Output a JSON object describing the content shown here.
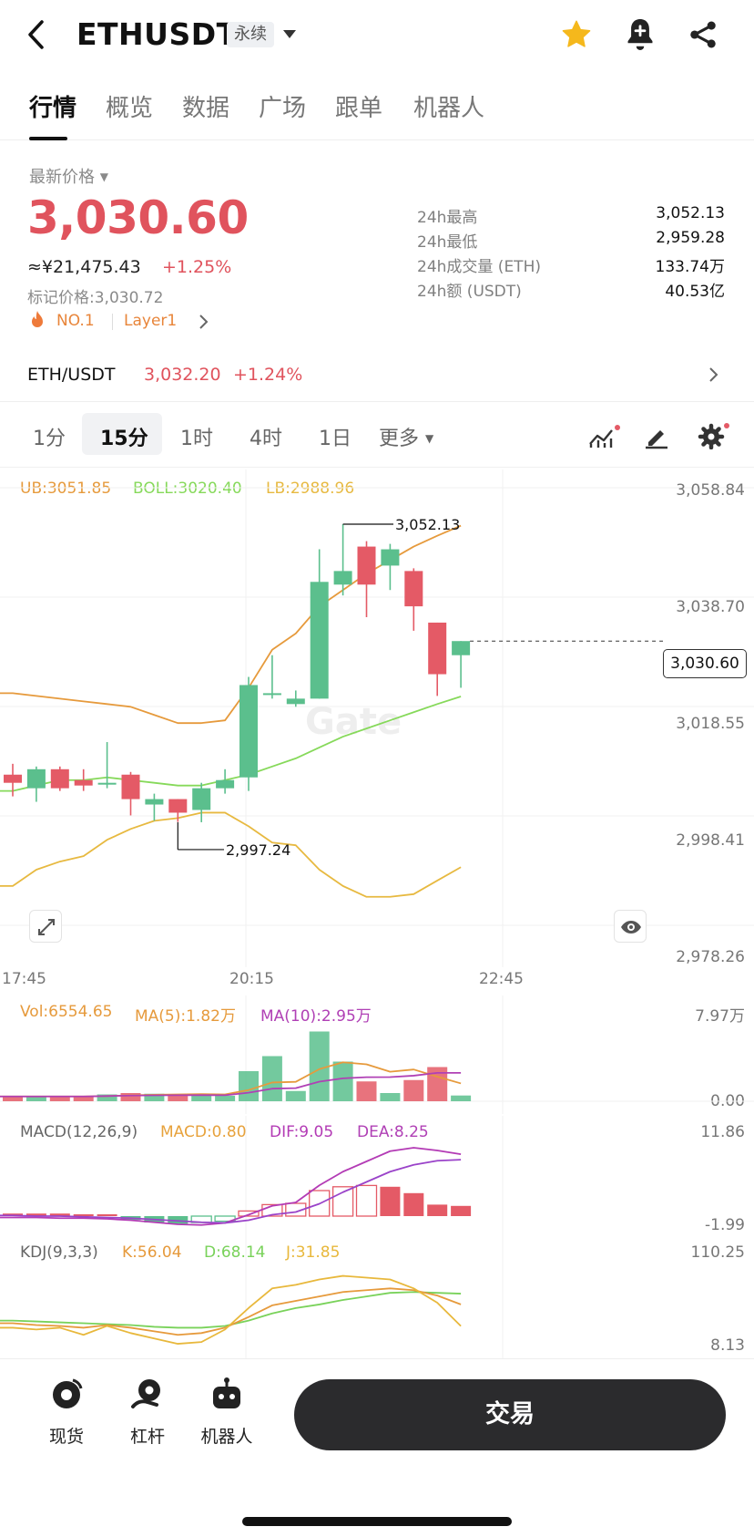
{
  "header": {
    "pair": "ETHUSDT",
    "contract_type": "永续",
    "favorited": true,
    "icons": [
      "back-icon",
      "dropdown-icon",
      "star-icon",
      "bell-plus-icon",
      "share-icon"
    ]
  },
  "tabs": [
    "行情",
    "概览",
    "数据",
    "广场",
    "跟单",
    "机器人"
  ],
  "price": {
    "label": "最新价格",
    "last": "3,030.60",
    "cny": "≈¥21,475.43",
    "change": "+1.25%",
    "mark_label": "标记价格:",
    "mark_value": "3,030.72",
    "tag_rank": "NO.1",
    "tag_sector": "Layer1"
  },
  "stats": [
    {
      "label": "24h最高",
      "value": "3,052.13"
    },
    {
      "label": "24h最低",
      "value": "2,959.28"
    },
    {
      "label": "24h成交量 (ETH)",
      "value": "133.74万"
    },
    {
      "label": "24h额 (USDT)",
      "value": "40.53亿"
    }
  ],
  "spot": {
    "pair": "ETH/USDT",
    "price": "3,032.20",
    "change": "+1.24%"
  },
  "intervals": [
    "1分",
    "15分",
    "1时",
    "4时",
    "1日",
    "更多"
  ],
  "active_interval": "15分",
  "boll": {
    "ub": "UB:3051.85",
    "mid": "BOLL:3020.40",
    "lb": "LB:2988.96"
  },
  "colors": {
    "up": "#5bbf8d",
    "down": "#e45a66",
    "ub": "#e69a3c",
    "mid": "#86d95a",
    "lb": "#e7b940",
    "macd": "#e7a23c",
    "dif": "#b33bb5",
    "dea": "#b040b5",
    "kdj_k": "#e69a3c",
    "kdj_d": "#79d25a",
    "kdj_j": "#e8b83c"
  },
  "chart_data": {
    "type": "candlestick",
    "x_ticks": [
      "17:45",
      "20:15",
      "22:45"
    ],
    "y_ticks": [
      "3,058.84",
      "3,038.70",
      "3,018.55",
      "2,998.41",
      "2,978.26"
    ],
    "ylim": [
      2978.26,
      3058.84
    ],
    "last_price_tag": "3,030.60",
    "high_marker": "3,052.13",
    "low_marker": "2,997.24",
    "candles": [
      {
        "o": 3006.0,
        "h": 3008.0,
        "l": 3002.0,
        "c": 3004.5
      },
      {
        "o": 3003.5,
        "h": 3007.5,
        "l": 3001.0,
        "c": 3007.0
      },
      {
        "o": 3007.0,
        "h": 3007.5,
        "l": 3003.0,
        "c": 3003.5
      },
      {
        "o": 3005.0,
        "h": 3007.0,
        "l": 3003.0,
        "c": 3004.0
      },
      {
        "o": 3004.5,
        "h": 3012.0,
        "l": 3003.5,
        "c": 3004.5
      },
      {
        "o": 3006.0,
        "h": 3006.5,
        "l": 2998.5,
        "c": 3001.5
      },
      {
        "o": 3000.5,
        "h": 3002.5,
        "l": 2997.5,
        "c": 3001.5
      },
      {
        "o": 3001.5,
        "h": 3001.5,
        "l": 2997.3,
        "c": 2999.0
      },
      {
        "o": 2999.5,
        "h": 3004.5,
        "l": 2997.24,
        "c": 3003.5
      },
      {
        "o": 3003.5,
        "h": 3007.0,
        "l": 3002.5,
        "c": 3005.0
      },
      {
        "o": 3005.5,
        "h": 3024.0,
        "l": 3003.0,
        "c": 3022.5
      },
      {
        "o": 3021.0,
        "h": 3028.0,
        "l": 3020.0,
        "c": 3021.0
      },
      {
        "o": 3019.0,
        "h": 3021.5,
        "l": 3018.5,
        "c": 3020.0
      },
      {
        "o": 3020.0,
        "h": 3047.5,
        "l": 3020.0,
        "c": 3041.5
      },
      {
        "o": 3041.0,
        "h": 3052.13,
        "l": 3039.0,
        "c": 3043.5
      },
      {
        "o": 3048.0,
        "h": 3049.0,
        "l": 3035.0,
        "c": 3041.0
      },
      {
        "o": 3044.5,
        "h": 3048.5,
        "l": 3040.0,
        "c": 3047.5
      },
      {
        "o": 3043.5,
        "h": 3044.0,
        "l": 3032.5,
        "c": 3037.0
      },
      {
        "o": 3034.0,
        "h": 3034.0,
        "l": 3020.5,
        "c": 3024.5
      },
      {
        "o": 3028.0,
        "h": 3030.6,
        "l": 3022.0,
        "c": 3030.6
      }
    ],
    "boll_ub": [
      3021,
      3020.5,
      3020,
      3019.5,
      3019,
      3018.5,
      3017,
      3015.5,
      3015.5,
      3016,
      3022,
      3029,
      3032,
      3037,
      3040,
      3043,
      3045.5,
      3048,
      3050,
      3051.85
    ],
    "boll_mid": [
      3003,
      3004,
      3005,
      3005,
      3005.5,
      3005,
      3004.5,
      3004,
      3004,
      3005,
      3006,
      3007.5,
      3009,
      3011,
      3013,
      3014.5,
      3016,
      3017.5,
      3019,
      3020.4
    ],
    "boll_lb": [
      2985.5,
      2988.5,
      2990,
      2991,
      2994,
      2996,
      2997.5,
      2998,
      2999,
      2999,
      2996.5,
      2993.5,
      2993,
      2988.5,
      2985.5,
      2983.5,
      2983.5,
      2984,
      2986.5,
      2988.96
    ],
    "volume": {
      "label": "Vol:6554.65",
      "ma5_label": "MA(5):1.82万",
      "ma10_label": "MA(10):2.95万",
      "y_ticks": [
        "7.97万",
        "0.00"
      ],
      "values": [
        0.35,
        0.35,
        0.35,
        0.35,
        0.5,
        0.6,
        0.55,
        0.5,
        0.45,
        0.4,
        2.2,
        3.3,
        0.75,
        5.1,
        2.9,
        1.45,
        0.6,
        1.55,
        2.5,
        0.42
      ]
    },
    "macd": {
      "label": "MACD(12,26,9)",
      "macd_label": "MACD:0.80",
      "dif_label": "DIF:9.05",
      "dea_label": "DEA:8.25",
      "y_ticks": [
        "11.86",
        "-1.99"
      ],
      "hist": [
        0.2,
        0.2,
        0.2,
        0.1,
        0,
        -0.3,
        -0.5,
        -0.6,
        -0.5,
        -0.4,
        0.4,
        0.9,
        1.0,
        2.0,
        2.3,
        2.4,
        2.3,
        1.8,
        0.9,
        0.8
      ],
      "dif": [
        -0.2,
        -0.2,
        -0.3,
        -0.3,
        -0.4,
        -0.6,
        -0.9,
        -1.2,
        -1.3,
        -1.0,
        0.2,
        1.5,
        2.0,
        4.5,
        6.5,
        8.0,
        9.5,
        10.0,
        9.6,
        9.05
      ],
      "dea": [
        0.1,
        0.0,
        0.0,
        -0.1,
        -0.2,
        -0.3,
        -0.5,
        -0.7,
        -0.9,
        -1.0,
        -0.6,
        0.2,
        0.6,
        1.8,
        3.5,
        5.0,
        6.5,
        7.5,
        8.1,
        8.25
      ]
    },
    "kdj": {
      "label": "KDJ(9,3,3)",
      "k_label": "K:56.04",
      "d_label": "D:68.14",
      "j_label": "J:31.85",
      "y_ticks": [
        "110.25",
        "8.13"
      ],
      "k": [
        35,
        33,
        32,
        30,
        33,
        30,
        26,
        22,
        24,
        30,
        42,
        55,
        60,
        65,
        70,
        72,
        74,
        72,
        66,
        56.04
      ],
      "d": [
        38,
        37,
        36,
        35,
        34,
        33,
        31,
        30,
        30,
        32,
        38,
        46,
        52,
        56,
        61,
        65,
        69,
        70,
        69,
        68.14
      ],
      "j": [
        30,
        28,
        30,
        22,
        32,
        24,
        18,
        12,
        14,
        28,
        52,
        74,
        78,
        84,
        88,
        86,
        84,
        74,
        58,
        31.85
      ]
    }
  },
  "bottom_nav": [
    {
      "label": "现货",
      "icon": "spot-icon"
    },
    {
      "label": "杠杆",
      "icon": "margin-icon"
    },
    {
      "label": "机器人",
      "icon": "robot-icon"
    }
  ],
  "trade_button": "交易",
  "watermark": "Gate"
}
